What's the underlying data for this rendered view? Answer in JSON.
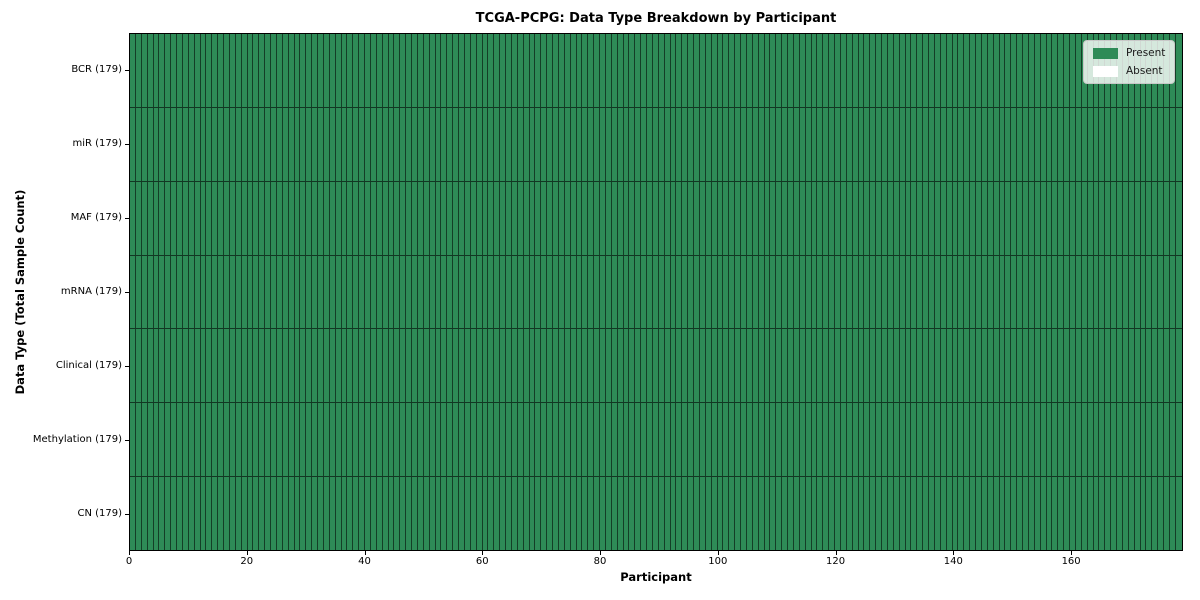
{
  "chart_data": {
    "type": "heatmap",
    "title": "TCGA-PCPG: Data Type Breakdown by Participant",
    "xlabel": "Participant",
    "ylabel": "Data Type (Total Sample Count)",
    "xlim": [
      0,
      179
    ],
    "participants": 179,
    "x_ticks": [
      0,
      20,
      40,
      60,
      80,
      100,
      120,
      140,
      160
    ],
    "rows": [
      {
        "label": "BCR (179)",
        "data_type": "BCR",
        "total": 179,
        "present": 179,
        "absent": 0
      },
      {
        "label": "miR (179)",
        "data_type": "miR",
        "total": 179,
        "present": 179,
        "absent": 0
      },
      {
        "label": "MAF (179)",
        "data_type": "MAF",
        "total": 179,
        "present": 179,
        "absent": 0
      },
      {
        "label": "mRNA (179)",
        "data_type": "mRNA",
        "total": 179,
        "present": 179,
        "absent": 0
      },
      {
        "label": "Clinical (179)",
        "data_type": "Clinical",
        "total": 179,
        "present": 179,
        "absent": 0
      },
      {
        "label": "Methylation (179)",
        "data_type": "Methylation",
        "total": 179,
        "present": 179,
        "absent": 0
      },
      {
        "label": "CN (179)",
        "data_type": "CN",
        "total": 179,
        "present": 179,
        "absent": 0
      }
    ],
    "legend": [
      {
        "label": "Present",
        "color": "#2e8b57"
      },
      {
        "label": "Absent",
        "color": "#ffffff"
      }
    ],
    "colors": {
      "present": "#2e8b57",
      "absent": "#ffffff",
      "cell_edge": "rgba(0,0,0,0.55)",
      "spine": "#000000"
    },
    "legend_position": "upper right",
    "grid": false
  }
}
